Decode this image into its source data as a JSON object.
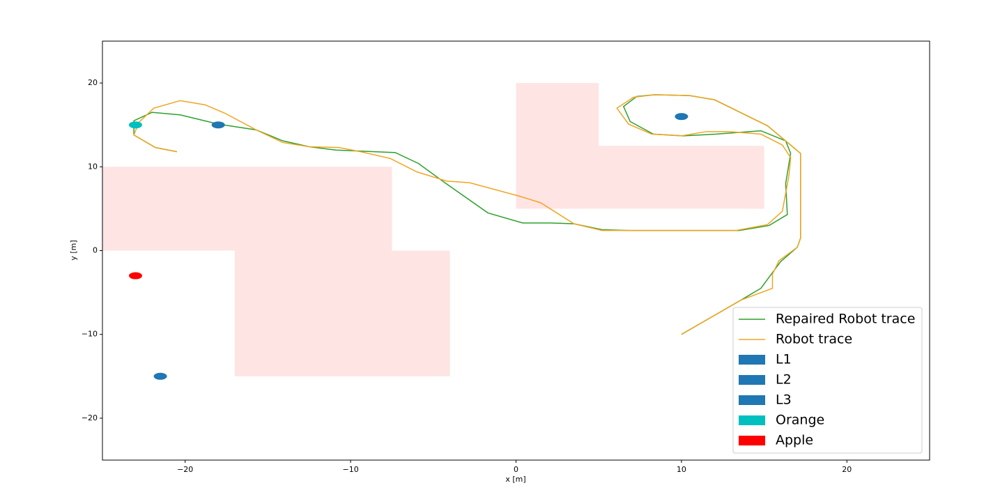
{
  "chart_data": {
    "type": "line",
    "xlabel": "x [m]",
    "ylabel": "y [m]",
    "xlim": [
      -25,
      25
    ],
    "ylim": [
      -25,
      25
    ],
    "xticks": [
      {
        "value": -20,
        "label": "−20"
      },
      {
        "value": -10,
        "label": "−10"
      },
      0,
      10,
      20
    ],
    "yticks": [
      {
        "value": -20,
        "label": "−20"
      },
      {
        "value": -10,
        "label": "−10"
      },
      0,
      10,
      20
    ],
    "legend": "lower right",
    "region_color": "#ffe4e4",
    "regions": [
      {
        "x": [
          -25,
          -25,
          -7.5,
          -7.5,
          -4,
          -4,
          -17,
          -17
        ],
        "y": [
          0,
          10,
          10,
          0,
          0,
          -15,
          -15,
          0
        ]
      },
      {
        "x": [
          0,
          0,
          5,
          5,
          15,
          15
        ],
        "y": [
          5,
          20,
          20,
          12.5,
          12.5,
          5
        ]
      }
    ],
    "series": [
      {
        "name": "Repaired Robot trace",
        "color": "#2ca02c",
        "x": [
          -20.5,
          -21.8,
          -23.1,
          -23.1,
          -22.0,
          -20.3,
          -18.0,
          -15.7,
          -14.1,
          -12.5,
          -10.9,
          -7.3,
          -5.9,
          -4.3,
          -1.7,
          0.4,
          2.1,
          3.5,
          5.2,
          6.8,
          13.5,
          15.3,
          16.4,
          16.3,
          16.6,
          16.3,
          14.8,
          12.1,
          10.1,
          8.3,
          6.9,
          6.5,
          7.3,
          8.4,
          10.5,
          12.0,
          15.2,
          17.2,
          17.2,
          17.0,
          16.0,
          15.4,
          14.8,
          13.6,
          10.0
        ],
        "values": [
          11.8,
          12.3,
          13.8,
          15.5,
          16.5,
          16.2,
          15.1,
          14.4,
          13.1,
          12.4,
          12.0,
          11.7,
          10.4,
          8.1,
          4.5,
          3.3,
          3.3,
          3.2,
          2.5,
          2.4,
          2.4,
          3.0,
          4.3,
          8.0,
          11.6,
          13.1,
          14.3,
          13.9,
          13.7,
          13.9,
          15.4,
          17.2,
          18.4,
          18.6,
          18.5,
          18.0,
          14.9,
          11.6,
          1.5,
          0.4,
          -1.3,
          -2.9,
          -4.5,
          -5.9,
          -10.0
        ]
      },
      {
        "name": "Robot trace",
        "color": "#f0a520",
        "x": [
          -20.5,
          -21.8,
          -23.1,
          -22.8,
          -21.9,
          -20.3,
          -18.8,
          -17.6,
          -15.7,
          -14.1,
          -12.5,
          -10.7,
          -9.4,
          -7.6,
          -6.0,
          -4.2,
          -2.8,
          0.2,
          1.5,
          3.5,
          5.2,
          13.3,
          15.2,
          16.1,
          16.5,
          16.6,
          16.1,
          14.8,
          12.9,
          11.5,
          10.0,
          8.2,
          6.8,
          6.1,
          7.1,
          8.4,
          10.5,
          12.0,
          15.2,
          17.2,
          17.2,
          17.0,
          15.9,
          15.5,
          15.5,
          13.6,
          10.0
        ],
        "values": [
          11.8,
          12.3,
          13.8,
          15.3,
          17.0,
          17.9,
          17.4,
          16.4,
          14.4,
          12.9,
          12.4,
          12.3,
          11.8,
          11.0,
          9.4,
          8.3,
          8.1,
          6.5,
          5.7,
          3.2,
          2.4,
          2.4,
          3.1,
          4.7,
          9.0,
          11.1,
          12.6,
          13.9,
          14.2,
          14.2,
          13.7,
          13.9,
          15.1,
          17.0,
          18.3,
          18.6,
          18.5,
          18.0,
          14.9,
          11.6,
          1.5,
          0.4,
          -1.2,
          -2.8,
          -4.5,
          -5.9,
          -10.0
        ]
      }
    ],
    "points": [
      {
        "name": "L1",
        "color": "#1f77b4",
        "x": -21.5,
        "y": -15
      },
      {
        "name": "L2",
        "color": "#1f77b4",
        "x": -18,
        "y": 15
      },
      {
        "name": "L3",
        "color": "#1f77b4",
        "x": 10,
        "y": 16
      },
      {
        "name": "Orange",
        "color": "#00bfbf",
        "x": -23,
        "y": 15
      },
      {
        "name": "Apple",
        "color": "#ff0000",
        "x": -23,
        "y": -3
      }
    ]
  }
}
